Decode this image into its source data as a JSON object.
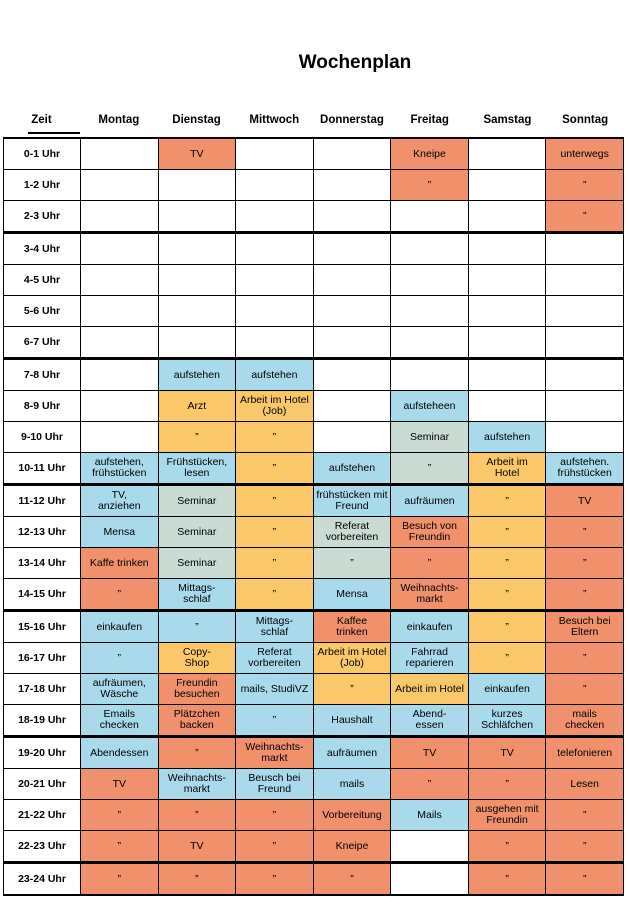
{
  "title": "Wochenplan",
  "columns": [
    "Zeit",
    "Montag",
    "Dienstag",
    "Mittwoch",
    "Donnerstag",
    "Freitag",
    "Samstag",
    "Sonntag"
  ],
  "ditto_mark": "”",
  "palette": {
    "white": "#FFFFFF",
    "salmon": "#F0916C",
    "blue": "#A8DAEC",
    "orange": "#FBC869",
    "green": "#C9DBD2"
  },
  "group_end_rows": [
    2,
    6,
    10,
    14,
    18,
    22
  ],
  "rows": [
    {
      "time": "0-1 Uhr",
      "cells": [
        {
          "t": "",
          "c": "white"
        },
        {
          "t": "TV",
          "c": "salmon"
        },
        {
          "t": "",
          "c": "white"
        },
        {
          "t": "",
          "c": "white"
        },
        {
          "t": "Kneipe",
          "c": "salmon"
        },
        {
          "t": "",
          "c": "white"
        },
        {
          "t": "unterwegs",
          "c": "salmon"
        }
      ]
    },
    {
      "time": "1-2 Uhr",
      "cells": [
        {
          "t": "",
          "c": "white"
        },
        {
          "t": "",
          "c": "white"
        },
        {
          "t": "",
          "c": "white"
        },
        {
          "t": "",
          "c": "white"
        },
        {
          "t": "”",
          "c": "salmon"
        },
        {
          "t": "",
          "c": "white"
        },
        {
          "t": "”",
          "c": "salmon"
        }
      ]
    },
    {
      "time": "2-3 Uhr",
      "cells": [
        {
          "t": "",
          "c": "white"
        },
        {
          "t": "",
          "c": "white"
        },
        {
          "t": "",
          "c": "white"
        },
        {
          "t": "",
          "c": "white"
        },
        {
          "t": "",
          "c": "white"
        },
        {
          "t": "",
          "c": "white"
        },
        {
          "t": "”",
          "c": "salmon"
        }
      ]
    },
    {
      "time": "3-4 Uhr",
      "cells": [
        {
          "t": "",
          "c": "white"
        },
        {
          "t": "",
          "c": "white"
        },
        {
          "t": "",
          "c": "white"
        },
        {
          "t": "",
          "c": "white"
        },
        {
          "t": "",
          "c": "white"
        },
        {
          "t": "",
          "c": "white"
        },
        {
          "t": "",
          "c": "white"
        }
      ]
    },
    {
      "time": "4-5 Uhr",
      "cells": [
        {
          "t": "",
          "c": "white"
        },
        {
          "t": "",
          "c": "white"
        },
        {
          "t": "",
          "c": "white"
        },
        {
          "t": "",
          "c": "white"
        },
        {
          "t": "",
          "c": "white"
        },
        {
          "t": "",
          "c": "white"
        },
        {
          "t": "",
          "c": "white"
        }
      ]
    },
    {
      "time": "5-6 Uhr",
      "cells": [
        {
          "t": "",
          "c": "white"
        },
        {
          "t": "",
          "c": "white"
        },
        {
          "t": "",
          "c": "white"
        },
        {
          "t": "",
          "c": "white"
        },
        {
          "t": "",
          "c": "white"
        },
        {
          "t": "",
          "c": "white"
        },
        {
          "t": "",
          "c": "white"
        }
      ]
    },
    {
      "time": "6-7 Uhr",
      "cells": [
        {
          "t": "",
          "c": "white"
        },
        {
          "t": "",
          "c": "white"
        },
        {
          "t": "",
          "c": "white"
        },
        {
          "t": "",
          "c": "white"
        },
        {
          "t": "",
          "c": "white"
        },
        {
          "t": "",
          "c": "white"
        },
        {
          "t": "",
          "c": "white"
        }
      ]
    },
    {
      "time": "7-8 Uhr",
      "cells": [
        {
          "t": "",
          "c": "white"
        },
        {
          "t": "aufstehen",
          "c": "blue"
        },
        {
          "t": "aufstehen",
          "c": "blue"
        },
        {
          "t": "",
          "c": "white"
        },
        {
          "t": "",
          "c": "white"
        },
        {
          "t": "",
          "c": "white"
        },
        {
          "t": "",
          "c": "white"
        }
      ]
    },
    {
      "time": "8-9 Uhr",
      "cells": [
        {
          "t": "",
          "c": "white"
        },
        {
          "t": "Arzt",
          "c": "orange"
        },
        {
          "t": "Arbeit im Hotel\n(Job)",
          "c": "orange"
        },
        {
          "t": "",
          "c": "white"
        },
        {
          "t": "aufsteheen",
          "c": "blue"
        },
        {
          "t": "",
          "c": "white"
        },
        {
          "t": "",
          "c": "white"
        }
      ]
    },
    {
      "time": "9-10 Uhr",
      "cells": [
        {
          "t": "",
          "c": "white"
        },
        {
          "t": "”",
          "c": "orange"
        },
        {
          "t": "”",
          "c": "orange"
        },
        {
          "t": "",
          "c": "white"
        },
        {
          "t": "Seminar",
          "c": "green"
        },
        {
          "t": "aufstehen",
          "c": "blue"
        },
        {
          "t": "",
          "c": "white"
        }
      ]
    },
    {
      "time": "10-11 Uhr",
      "cells": [
        {
          "t": "aufstehen,\nfrühstücken",
          "c": "blue"
        },
        {
          "t": "Frühstücken,\nlesen",
          "c": "blue"
        },
        {
          "t": "”",
          "c": "orange"
        },
        {
          "t": "aufstehen",
          "c": "blue"
        },
        {
          "t": "”",
          "c": "green"
        },
        {
          "t": "Arbeit im\nHotel",
          "c": "orange"
        },
        {
          "t": "aufstehen.\nfrühstücken",
          "c": "blue"
        }
      ]
    },
    {
      "time": "11-12 Uhr",
      "cells": [
        {
          "t": "TV,\nanziehen",
          "c": "blue"
        },
        {
          "t": "Seminar",
          "c": "green"
        },
        {
          "t": "”",
          "c": "orange"
        },
        {
          "t": "frühstücken mit\nFreund",
          "c": "blue"
        },
        {
          "t": "aufräumen",
          "c": "blue"
        },
        {
          "t": "”",
          "c": "orange"
        },
        {
          "t": "TV",
          "c": "salmon"
        }
      ]
    },
    {
      "time": "12-13 Uhr",
      "cells": [
        {
          "t": "Mensa",
          "c": "blue"
        },
        {
          "t": "Seminar",
          "c": "green"
        },
        {
          "t": "”",
          "c": "orange"
        },
        {
          "t": "Referat\nvorbereiten",
          "c": "green"
        },
        {
          "t": "Besuch von\nFreundin",
          "c": "salmon"
        },
        {
          "t": "”",
          "c": "orange"
        },
        {
          "t": "”",
          "c": "salmon"
        }
      ]
    },
    {
      "time": "13-14 Uhr",
      "cells": [
        {
          "t": "Kaffe trinken",
          "c": "salmon"
        },
        {
          "t": "Seminar",
          "c": "green"
        },
        {
          "t": "”",
          "c": "orange"
        },
        {
          "t": "”",
          "c": "green"
        },
        {
          "t": "”",
          "c": "salmon"
        },
        {
          "t": "”",
          "c": "orange"
        },
        {
          "t": "”",
          "c": "salmon"
        }
      ]
    },
    {
      "time": "14-15 Uhr",
      "cells": [
        {
          "t": "”",
          "c": "salmon"
        },
        {
          "t": "Mittags-\nschlaf",
          "c": "blue"
        },
        {
          "t": "”",
          "c": "orange"
        },
        {
          "t": "Mensa",
          "c": "blue"
        },
        {
          "t": "Weihnachts-\nmarkt",
          "c": "salmon"
        },
        {
          "t": "”",
          "c": "orange"
        },
        {
          "t": "”",
          "c": "salmon"
        }
      ]
    },
    {
      "time": "15-16 Uhr",
      "cells": [
        {
          "t": "einkaufen",
          "c": "blue"
        },
        {
          "t": "”",
          "c": "blue"
        },
        {
          "t": "Mittags-\nschlaf",
          "c": "blue"
        },
        {
          "t": "Kaffee\ntrinken",
          "c": "salmon"
        },
        {
          "t": "einkaufen",
          "c": "blue"
        },
        {
          "t": "”",
          "c": "orange"
        },
        {
          "t": "Besuch bei\nEltern",
          "c": "salmon"
        }
      ]
    },
    {
      "time": "16-17 Uhr",
      "cells": [
        {
          "t": "”",
          "c": "blue"
        },
        {
          "t": "Copy-\nShop",
          "c": "orange"
        },
        {
          "t": "Referat\nvorbereiten",
          "c": "blue"
        },
        {
          "t": "Arbeit im Hotel\n(Job)",
          "c": "orange"
        },
        {
          "t": "Fahrrad\nreparieren",
          "c": "blue"
        },
        {
          "t": "”",
          "c": "orange"
        },
        {
          "t": "”",
          "c": "salmon"
        }
      ]
    },
    {
      "time": "17-18 Uhr",
      "cells": [
        {
          "t": "aufräumen,\nWäsche",
          "c": "blue"
        },
        {
          "t": "Freundin\nbesuchen",
          "c": "salmon"
        },
        {
          "t": "mails, StudiVZ",
          "c": "blue"
        },
        {
          "t": "”",
          "c": "orange"
        },
        {
          "t": "Arbeit im Hotel",
          "c": "orange"
        },
        {
          "t": "einkaufen",
          "c": "blue"
        },
        {
          "t": "”",
          "c": "salmon"
        }
      ]
    },
    {
      "time": "18-19 Uhr",
      "cells": [
        {
          "t": "Emails\nchecken",
          "c": "blue"
        },
        {
          "t": "Plätzchen\nbacken",
          "c": "salmon"
        },
        {
          "t": "”",
          "c": "blue"
        },
        {
          "t": "Haushalt",
          "c": "blue"
        },
        {
          "t": "Abend-\nessen",
          "c": "blue"
        },
        {
          "t": "kurzes\nSchläfchen",
          "c": "blue"
        },
        {
          "t": "mails\nchecken",
          "c": "salmon"
        }
      ]
    },
    {
      "time": "19-20 Uhr",
      "cells": [
        {
          "t": "Abendessen",
          "c": "blue"
        },
        {
          "t": "”",
          "c": "salmon"
        },
        {
          "t": "Weihnachts-\nmarkt",
          "c": "salmon"
        },
        {
          "t": "aufräumen",
          "c": "blue"
        },
        {
          "t": "TV",
          "c": "salmon"
        },
        {
          "t": "TV",
          "c": "salmon"
        },
        {
          "t": "telefonieren",
          "c": "salmon"
        }
      ]
    },
    {
      "time": "20-21 Uhr",
      "cells": [
        {
          "t": "TV",
          "c": "salmon"
        },
        {
          "t": "Weihnachts-\nmarkt",
          "c": "blue"
        },
        {
          "t": "Beusch bei\nFreund",
          "c": "blue"
        },
        {
          "t": "mails",
          "c": "blue"
        },
        {
          "t": "”",
          "c": "salmon"
        },
        {
          "t": "”",
          "c": "salmon"
        },
        {
          "t": "Lesen",
          "c": "salmon"
        }
      ]
    },
    {
      "time": "21-22 Uhr",
      "cells": [
        {
          "t": "”",
          "c": "salmon"
        },
        {
          "t": "”",
          "c": "salmon"
        },
        {
          "t": "”",
          "c": "salmon"
        },
        {
          "t": "Vorbereitung",
          "c": "salmon"
        },
        {
          "t": "Mails",
          "c": "blue"
        },
        {
          "t": "ausgehen mit\nFreundin",
          "c": "salmon"
        },
        {
          "t": "”",
          "c": "salmon"
        }
      ]
    },
    {
      "time": "22-23 Uhr",
      "cells": [
        {
          "t": "”",
          "c": "salmon"
        },
        {
          "t": "TV",
          "c": "salmon"
        },
        {
          "t": "”",
          "c": "salmon"
        },
        {
          "t": "Kneipe",
          "c": "salmon"
        },
        {
          "t": "",
          "c": "white"
        },
        {
          "t": "”",
          "c": "salmon"
        },
        {
          "t": "”",
          "c": "salmon"
        }
      ]
    },
    {
      "time": "23-24 Uhr",
      "cells": [
        {
          "t": "”",
          "c": "salmon"
        },
        {
          "t": "”",
          "c": "salmon"
        },
        {
          "t": "”",
          "c": "salmon"
        },
        {
          "t": "”",
          "c": "salmon"
        },
        {
          "t": "",
          "c": "white"
        },
        {
          "t": "”",
          "c": "salmon"
        },
        {
          "t": "”",
          "c": "salmon"
        }
      ]
    }
  ]
}
